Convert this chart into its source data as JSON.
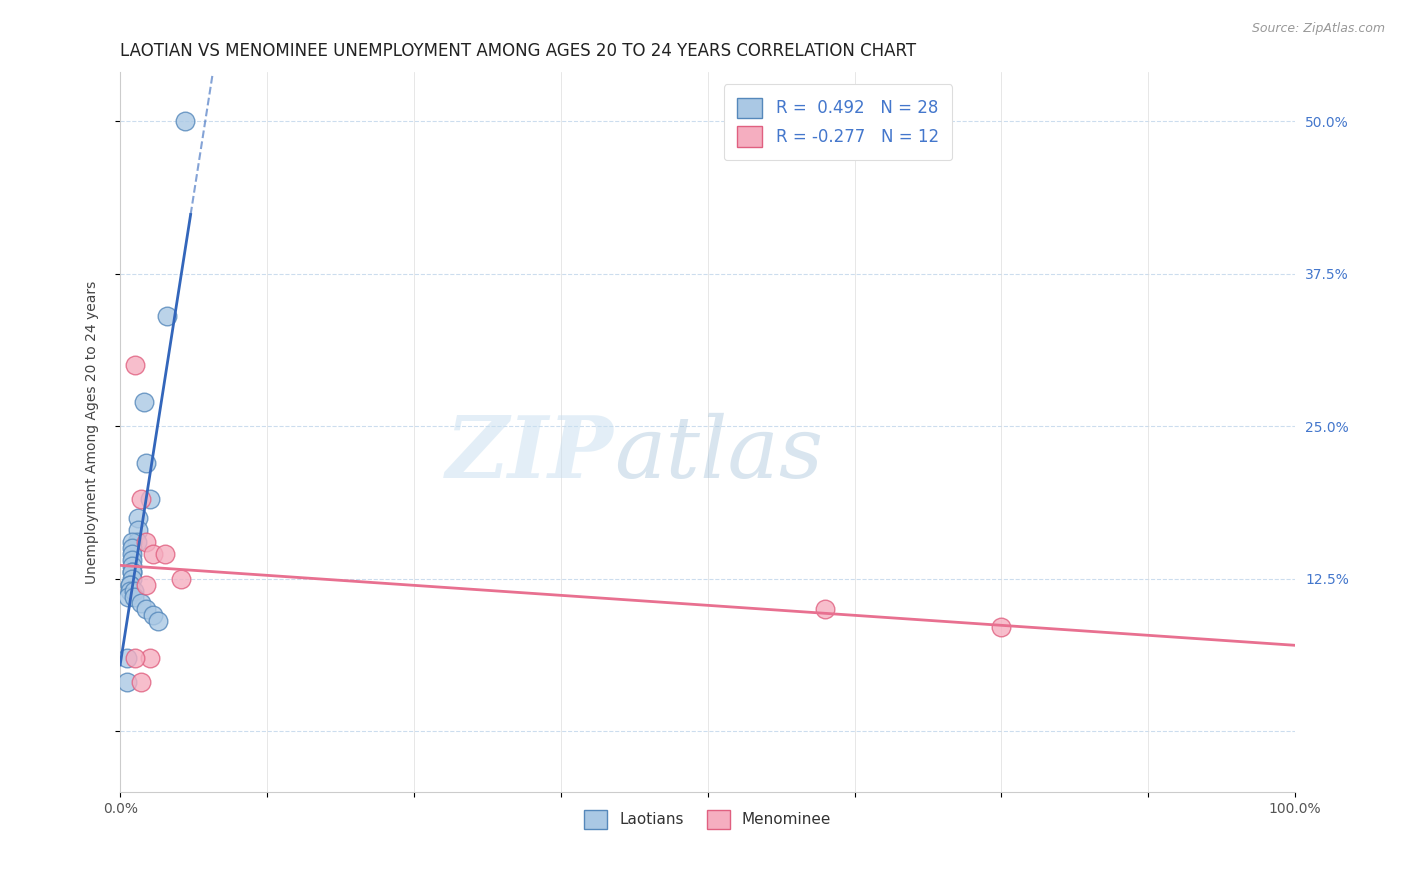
{
  "title": "LAOTIAN VS MENOMINEE UNEMPLOYMENT AMONG AGES 20 TO 24 YEARS CORRELATION CHART",
  "source": "Source: ZipAtlas.com",
  "ylabel": "Unemployment Among Ages 20 to 24 years",
  "xlim": [
    0.0,
    1.0
  ],
  "ylim": [
    -0.05,
    0.54
  ],
  "xticks": [
    0.0,
    0.125,
    0.25,
    0.375,
    0.5,
    0.625,
    0.75,
    0.875,
    1.0
  ],
  "xticklabels": [
    "0.0%",
    "",
    "",
    "",
    "",
    "",
    "",
    "",
    "100.0%"
  ],
  "ytick_values": [
    0.0,
    0.125,
    0.25,
    0.375,
    0.5
  ],
  "yticklabels_right": [
    "",
    "12.5%",
    "25.0%",
    "37.5%",
    "50.0%"
  ],
  "laotian_x": [
    0.055,
    0.04,
    0.02,
    0.022,
    0.025,
    0.015,
    0.015,
    0.014,
    0.01,
    0.01,
    0.01,
    0.01,
    0.01,
    0.01,
    0.01,
    0.01,
    0.008,
    0.008,
    0.008,
    0.007,
    0.012,
    0.012,
    0.018,
    0.022,
    0.028,
    0.032,
    0.006,
    0.006
  ],
  "laotian_y": [
    0.5,
    0.34,
    0.27,
    0.22,
    0.19,
    0.175,
    0.165,
    0.155,
    0.155,
    0.15,
    0.145,
    0.14,
    0.135,
    0.13,
    0.13,
    0.125,
    0.12,
    0.12,
    0.115,
    0.11,
    0.115,
    0.11,
    0.105,
    0.1,
    0.095,
    0.09,
    0.06,
    0.04
  ],
  "menominee_x": [
    0.013,
    0.018,
    0.022,
    0.028,
    0.022,
    0.038,
    0.052,
    0.025,
    0.6,
    0.75,
    0.013,
    0.018
  ],
  "menominee_y": [
    0.3,
    0.19,
    0.155,
    0.145,
    0.12,
    0.145,
    0.125,
    0.06,
    0.1,
    0.085,
    0.06,
    0.04
  ],
  "laotian_color": "#aac8e4",
  "menominee_color": "#f5aec0",
  "laotian_edge": "#5588bb",
  "menominee_edge": "#e06080",
  "trend_laotian_color": "#3366bb",
  "trend_menominee_color": "#e87090",
  "R_laotian": 0.492,
  "N_laotian": 28,
  "R_menominee": -0.277,
  "N_menominee": 12,
  "watermark_zip": "ZIP",
  "watermark_atlas": "atlas",
  "legend_labels": [
    "Laotians",
    "Menominee"
  ],
  "title_fontsize": 12,
  "axis_label_fontsize": 10,
  "tick_fontsize": 10,
  "legend_fontsize": 11,
  "corr_legend_fontsize": 12
}
